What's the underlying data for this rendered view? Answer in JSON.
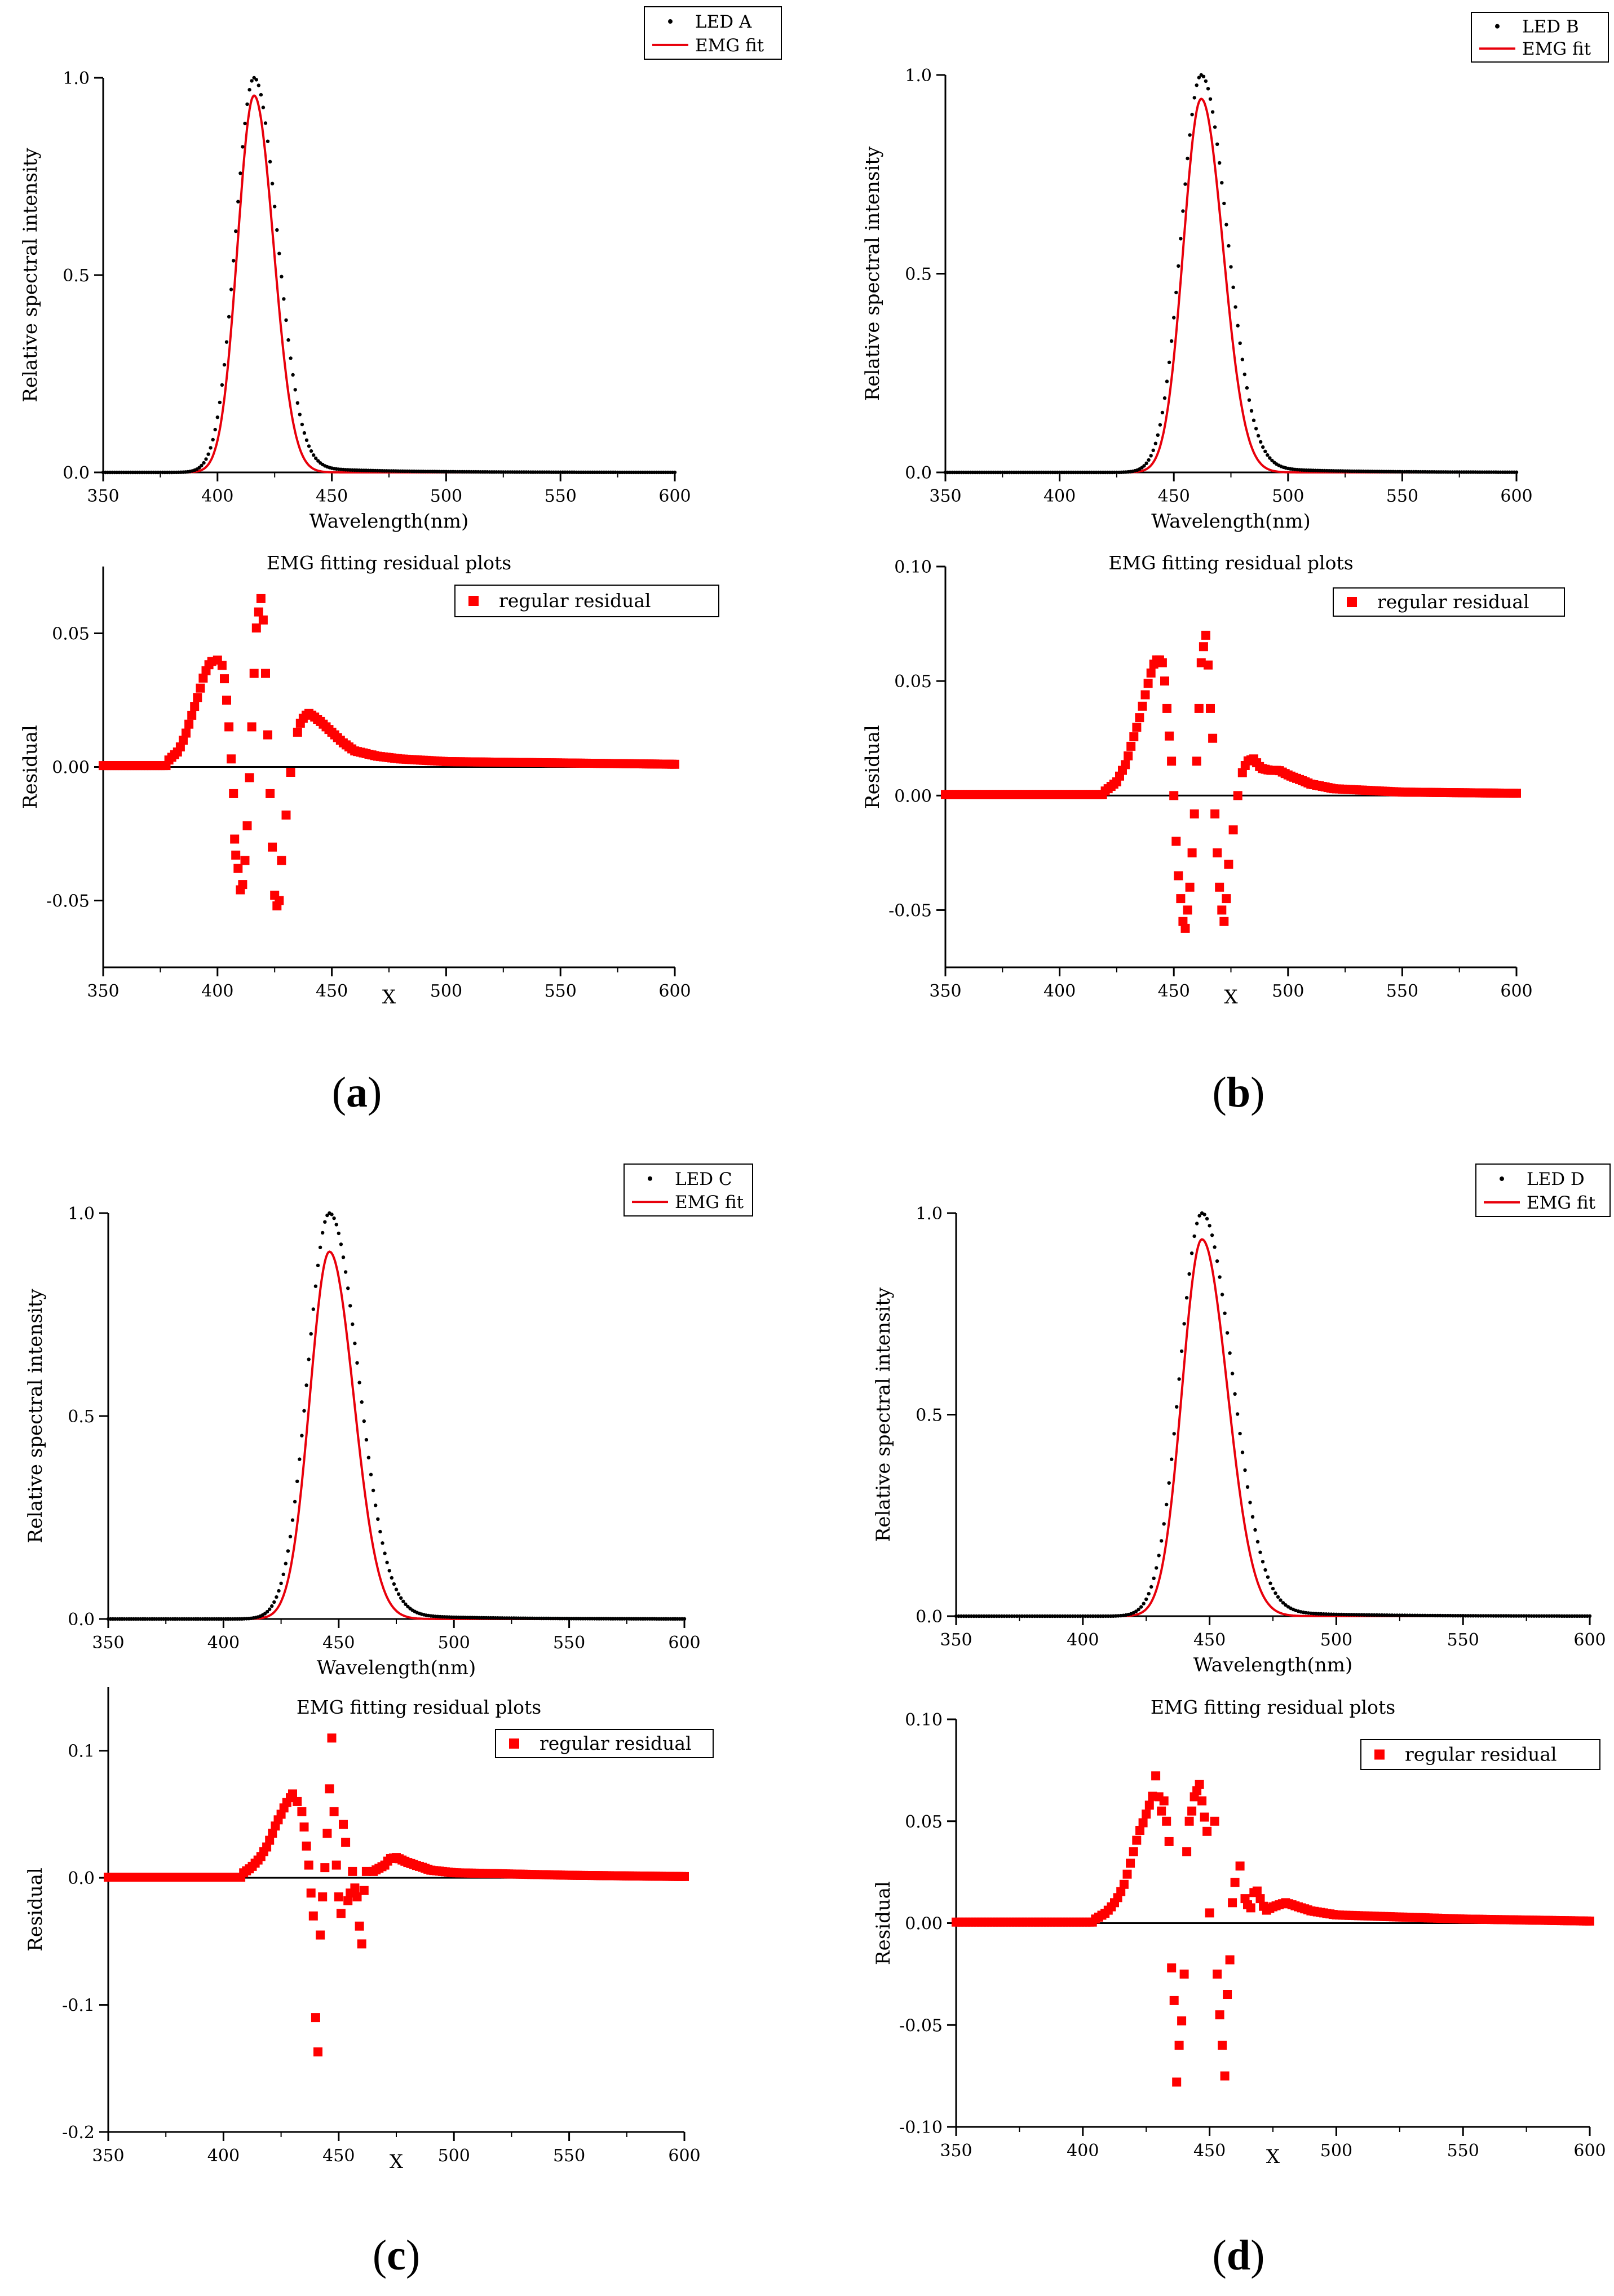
{
  "panels": [
    {
      "label": "(a)",
      "label_letter": "a",
      "spectrum": {
        "series_name": "LED A",
        "fit_name": "EMG fit",
        "peak_nm": 416,
        "peak_fit": 0.955,
        "sigma_left": 7.2,
        "sigma_right": 8.5,
        "tail_amp": 0.0
      },
      "residual": {
        "title": "EMG fitting residual plots",
        "legend": "regular residual",
        "ylim": [
          -0.075,
          0.075
        ],
        "yticks": [
          -0.05,
          0.0,
          0.05
        ],
        "ytick_labels": [
          "-0.05",
          "0.00",
          "0.05"
        ]
      }
    },
    {
      "label": "(b)",
      "label_letter": "b",
      "spectrum": {
        "series_name": "LED B",
        "fit_name": "EMG fit",
        "peak_nm": 462,
        "peak_fit": 0.94,
        "sigma_left": 7.8,
        "sigma_right": 9.5,
        "tail_amp": 0.0
      },
      "residual": {
        "title": "EMG fitting residual plots",
        "legend": "regular residual",
        "ylim": [
          -0.075,
          0.1
        ],
        "yticks": [
          -0.05,
          0.0,
          0.05,
          0.1
        ],
        "ytick_labels": [
          "-0.05",
          "0.00",
          "0.05",
          "0.10"
        ]
      }
    },
    {
      "label": "(c)",
      "label_letter": "c",
      "spectrum": {
        "series_name": "LED C",
        "fit_name": "EMG fit",
        "peak_nm": 446,
        "peak_fit": 0.905,
        "sigma_left": 8.5,
        "sigma_right": 10.5,
        "tail_amp": 0.0
      },
      "residual": {
        "title": "EMG fitting residual plots",
        "legend": "regular residual",
        "ylim": [
          -0.2,
          0.15
        ],
        "yticks": [
          -0.2,
          -0.1,
          0.0,
          0.1
        ],
        "ytick_labels": [
          "-0.2",
          "-0.1",
          "0.0",
          "0.1"
        ]
      }
    },
    {
      "label": "(d)",
      "label_letter": "d",
      "spectrum": {
        "series_name": "LED D",
        "fit_name": "EMG fit",
        "peak_nm": 447,
        "peak_fit": 0.935,
        "sigma_left": 7.8,
        "sigma_right": 10.0,
        "tail_amp": 0.0
      },
      "residual": {
        "title": "EMG fitting residual plots",
        "legend": "regular residual",
        "ylim": [
          -0.1,
          0.1
        ],
        "yticks": [
          -0.1,
          -0.05,
          0.0,
          0.05,
          0.1
        ],
        "ytick_labels": [
          "-0.10",
          "-0.05",
          "0.00",
          "0.05",
          "0.10"
        ]
      }
    }
  ],
  "chart_data": [
    {
      "type": "scatter",
      "panel": "a-top",
      "series": [
        {
          "name": "LED A",
          "peak_x": 417,
          "peak_y": 1.0
        },
        {
          "name": "EMG fit",
          "peak_x": 416,
          "peak_y": 0.955
        }
      ],
      "xlabel": "Wavelength(nm)",
      "ylabel": "Relative spectral intensity",
      "xlim": [
        350,
        600
      ],
      "ylim": [
        0,
        1.0
      ],
      "xticks": [
        350,
        400,
        450,
        500,
        550,
        600
      ],
      "yticks": [
        "0.0",
        "0.5",
        "1.0"
      ]
    },
    {
      "type": "scatter",
      "panel": "a-bottom",
      "title": "EMG fitting residual plots",
      "series": [
        {
          "name": "regular residual"
        }
      ],
      "xlabel": "X",
      "ylabel": "Residual",
      "xlim": [
        350,
        600
      ],
      "ylim": [
        -0.075,
        0.075
      ],
      "points": [
        [
          378,
          0.002
        ],
        [
          383,
          0.006
        ],
        [
          386,
          0.012
        ],
        [
          389,
          0.02
        ],
        [
          392,
          0.028
        ],
        [
          394,
          0.034
        ],
        [
          396,
          0.038
        ],
        [
          398,
          0.04
        ],
        [
          400,
          0.04
        ],
        [
          402,
          0.038
        ],
        [
          403,
          0.033
        ],
        [
          404,
          0.025
        ],
        [
          405,
          0.015
        ],
        [
          406,
          0.003
        ],
        [
          407,
          -0.01
        ],
        [
          407.5,
          -0.027
        ],
        [
          408,
          -0.033
        ],
        [
          409,
          -0.038
        ],
        [
          410,
          -0.046
        ],
        [
          411,
          -0.044
        ],
        [
          412,
          -0.035
        ],
        [
          413,
          -0.022
        ],
        [
          414,
          -0.004
        ],
        [
          415,
          0.015
        ],
        [
          416,
          0.035
        ],
        [
          417,
          0.052
        ],
        [
          418,
          0.058
        ],
        [
          419,
          0.063
        ],
        [
          420,
          0.055
        ],
        [
          421,
          0.035
        ],
        [
          422,
          0.012
        ],
        [
          423,
          -0.01
        ],
        [
          424,
          -0.03
        ],
        [
          425,
          -0.048
        ],
        [
          426,
          -0.052
        ],
        [
          427,
          -0.05
        ],
        [
          428,
          -0.035
        ],
        [
          430,
          -0.018
        ],
        [
          432,
          -0.002
        ],
        [
          434,
          0.01
        ],
        [
          436,
          0.016
        ],
        [
          438,
          0.019
        ],
        [
          440,
          0.02
        ],
        [
          442,
          0.019
        ],
        [
          445,
          0.017
        ],
        [
          450,
          0.013
        ],
        [
          455,
          0.009
        ],
        [
          460,
          0.006
        ],
        [
          470,
          0.004
        ],
        [
          480,
          0.003
        ],
        [
          500,
          0.002
        ],
        [
          550,
          0.0015
        ],
        [
          600,
          0.001
        ]
      ]
    },
    {
      "type": "scatter",
      "panel": "b-top",
      "series": [
        {
          "name": "LED B",
          "peak_x": 463,
          "peak_y": 1.0
        },
        {
          "name": "EMG fit",
          "peak_x": 462,
          "peak_y": 0.94
        }
      ],
      "xlabel": "Wavelength(nm)",
      "ylabel": "Relative spectral intensity",
      "xlim": [
        350,
        600
      ],
      "ylim": [
        0,
        1.0
      ],
      "xticks": [
        350,
        400,
        450,
        500,
        550,
        600
      ],
      "yticks": [
        "0.0",
        "0.5",
        "1.0"
      ]
    },
    {
      "type": "scatter",
      "panel": "b-bottom",
      "title": "EMG fitting residual plots",
      "series": [
        {
          "name": "regular residual"
        }
      ],
      "xlabel": "X",
      "ylabel": "Residual",
      "xlim": [
        350,
        600
      ],
      "ylim": [
        -0.075,
        0.1
      ],
      "points": [
        [
          420,
          0.002
        ],
        [
          425,
          0.006
        ],
        [
          429,
          0.014
        ],
        [
          432,
          0.024
        ],
        [
          435,
          0.034
        ],
        [
          437,
          0.042
        ],
        [
          439,
          0.05
        ],
        [
          441,
          0.057
        ],
        [
          443,
          0.06
        ],
        [
          445,
          0.058
        ],
        [
          446,
          0.05
        ],
        [
          447,
          0.038
        ],
        [
          448,
          0.026
        ],
        [
          449,
          0.015
        ],
        [
          450,
          0.0
        ],
        [
          451,
          -0.02
        ],
        [
          452,
          -0.035
        ],
        [
          453,
          -0.045
        ],
        [
          454,
          -0.055
        ],
        [
          455,
          -0.058
        ],
        [
          456,
          -0.05
        ],
        [
          457,
          -0.04
        ],
        [
          458,
          -0.025
        ],
        [
          459,
          -0.008
        ],
        [
          460,
          0.015
        ],
        [
          461,
          0.038
        ],
        [
          462,
          0.058
        ],
        [
          463,
          0.065
        ],
        [
          464,
          0.07
        ],
        [
          465,
          0.057
        ],
        [
          466,
          0.038
        ],
        [
          467,
          0.025
        ],
        [
          468,
          -0.008
        ],
        [
          469,
          -0.025
        ],
        [
          470,
          -0.04
        ],
        [
          471,
          -0.05
        ],
        [
          472,
          -0.055
        ],
        [
          473,
          -0.045
        ],
        [
          474,
          -0.03
        ],
        [
          476,
          -0.015
        ],
        [
          478,
          0.0
        ],
        [
          480,
          0.01
        ],
        [
          482,
          0.015
        ],
        [
          485,
          0.016
        ],
        [
          488,
          0.012
        ],
        [
          492,
          0.011
        ],
        [
          496,
          0.011
        ],
        [
          500,
          0.009
        ],
        [
          510,
          0.005
        ],
        [
          520,
          0.003
        ],
        [
          550,
          0.0015
        ],
        [
          600,
          0.001
        ]
      ]
    },
    {
      "type": "scatter",
      "panel": "c-top",
      "series": [
        {
          "name": "LED C",
          "peak_x": 445,
          "peak_y": 1.0
        },
        {
          "name": "EMG fit",
          "peak_x": 446,
          "peak_y": 0.905
        }
      ],
      "xlabel": "Wavelength(nm)",
      "ylabel": "Relative spectral intensity",
      "xlim": [
        350,
        600
      ],
      "ylim": [
        0,
        1.0
      ],
      "xticks": [
        350,
        400,
        450,
        500,
        550,
        600
      ],
      "yticks": [
        "0.0",
        "0.5",
        "1.0"
      ]
    },
    {
      "type": "scatter",
      "panel": "c-bottom",
      "title": "EMG fitting residual plots",
      "series": [
        {
          "name": "regular residual"
        }
      ],
      "xlabel": "X",
      "ylabel": "Residual",
      "xlim": [
        350,
        600
      ],
      "ylim": [
        -0.2,
        0.15
      ],
      "points": [
        [
          408,
          0.003
        ],
        [
          412,
          0.008
        ],
        [
          416,
          0.016
        ],
        [
          419,
          0.025
        ],
        [
          421,
          0.034
        ],
        [
          423,
          0.043
        ],
        [
          425,
          0.05
        ],
        [
          427,
          0.058
        ],
        [
          429,
          0.063
        ],
        [
          430,
          0.066
        ],
        [
          432,
          0.06
        ],
        [
          434,
          0.052
        ],
        [
          435,
          0.04
        ],
        [
          436,
          0.025
        ],
        [
          437,
          0.01
        ],
        [
          438,
          -0.012
        ],
        [
          439,
          -0.03
        ],
        [
          440,
          -0.11
        ],
        [
          441,
          -0.137
        ],
        [
          442,
          -0.045
        ],
        [
          443,
          -0.015
        ],
        [
          444,
          0.008
        ],
        [
          445,
          0.035
        ],
        [
          446,
          0.07
        ],
        [
          447,
          0.11
        ],
        [
          448,
          0.052
        ],
        [
          449,
          0.01
        ],
        [
          450,
          -0.015
        ],
        [
          451,
          -0.028
        ],
        [
          452,
          0.042
        ],
        [
          453,
          0.028
        ],
        [
          454,
          -0.018
        ],
        [
          455,
          -0.012
        ],
        [
          456,
          0.005
        ],
        [
          457,
          -0.008
        ],
        [
          458,
          -0.015
        ],
        [
          459,
          -0.038
        ],
        [
          460,
          -0.052
        ],
        [
          461,
          -0.01
        ],
        [
          462,
          0.005
        ],
        [
          464,
          0.004
        ],
        [
          466,
          0.006
        ],
        [
          468,
          0.008
        ],
        [
          470,
          0.01
        ],
        [
          472,
          0.015
        ],
        [
          475,
          0.016
        ],
        [
          480,
          0.012
        ],
        [
          490,
          0.006
        ],
        [
          500,
          0.004
        ],
        [
          550,
          0.002
        ],
        [
          600,
          0.001
        ]
      ]
    },
    {
      "type": "scatter",
      "panel": "d-top",
      "series": [
        {
          "name": "LED D",
          "peak_x": 447,
          "peak_y": 1.0
        },
        {
          "name": "EMG fit",
          "peak_x": 447,
          "peak_y": 0.935
        }
      ],
      "xlabel": "Wavelength(nm)",
      "ylabel": "Relative spectral intensity",
      "xlim": [
        350,
        600
      ],
      "ylim": [
        0,
        1.0
      ],
      "xticks": [
        350,
        400,
        450,
        500,
        550,
        600
      ],
      "yticks": [
        "0.0",
        "0.5",
        "1.0"
      ]
    },
    {
      "type": "scatter",
      "panel": "d-bottom",
      "title": "EMG fitting residual plots",
      "series": [
        {
          "name": "regular residual"
        }
      ],
      "xlabel": "X",
      "ylabel": "Residual",
      "xlim": [
        350,
        600
      ],
      "ylim": [
        -0.1,
        0.1
      ],
      "points": [
        [
          405,
          0.002
        ],
        [
          409,
          0.005
        ],
        [
          412,
          0.009
        ],
        [
          414,
          0.013
        ],
        [
          416,
          0.018
        ],
        [
          418,
          0.026
        ],
        [
          420,
          0.035
        ],
        [
          422,
          0.044
        ],
        [
          424,
          0.05
        ],
        [
          426,
          0.057
        ],
        [
          428,
          0.064
        ],
        [
          429,
          0.075
        ],
        [
          430,
          0.062
        ],
        [
          431,
          0.055
        ],
        [
          432,
          0.06
        ],
        [
          433,
          0.05
        ],
        [
          434,
          0.04
        ],
        [
          435,
          -0.022
        ],
        [
          436,
          -0.038
        ],
        [
          437,
          -0.078
        ],
        [
          438,
          -0.06
        ],
        [
          439,
          -0.048
        ],
        [
          440,
          -0.025
        ],
        [
          441,
          0.035
        ],
        [
          442,
          0.05
        ],
        [
          443,
          0.055
        ],
        [
          444,
          0.062
        ],
        [
          445,
          0.065
        ],
        [
          446,
          0.068
        ],
        [
          447,
          0.06
        ],
        [
          448,
          0.052
        ],
        [
          449,
          0.045
        ],
        [
          450,
          0.005
        ],
        [
          452,
          0.05
        ],
        [
          453,
          -0.025
        ],
        [
          454,
          -0.045
        ],
        [
          455,
          -0.06
        ],
        [
          456,
          -0.075
        ],
        [
          457,
          -0.035
        ],
        [
          458,
          -0.018
        ],
        [
          459,
          0.01
        ],
        [
          460,
          0.02
        ],
        [
          462,
          0.028
        ],
        [
          464,
          0.012
        ],
        [
          466,
          0.006
        ],
        [
          468,
          0.018
        ],
        [
          470,
          0.012
        ],
        [
          472,
          0.006
        ],
        [
          475,
          0.008
        ],
        [
          480,
          0.01
        ],
        [
          490,
          0.006
        ],
        [
          500,
          0.004
        ],
        [
          550,
          0.002
        ],
        [
          600,
          0.001
        ]
      ]
    }
  ]
}
